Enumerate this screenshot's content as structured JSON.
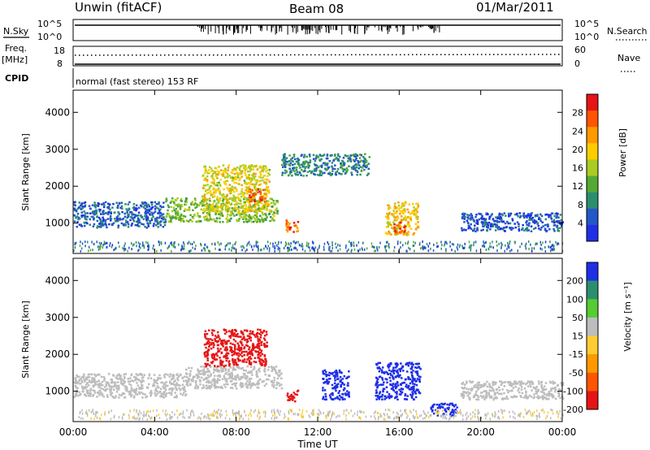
{
  "header": {
    "station": "Unwin (fitACF)",
    "beam": "Beam 08",
    "date": "01/Mar/2011"
  },
  "panels": {
    "nsky_label": "N.Sky",
    "nsearch_label": "N.Search",
    "freq_label": "Freq.",
    "freq_unit": "[MHz]",
    "nave_label": "Nave",
    "cpid_label": "CPID",
    "cpid_text": "normal (fast stereo) 153 RF",
    "noise_ticks_left": [
      "10^5",
      "10^0"
    ],
    "noise_ticks_right": [
      "10^5",
      "10^0"
    ],
    "freq_ticks_left": [
      "18",
      "8"
    ],
    "freq_ticks_right": [
      "60",
      "0"
    ]
  },
  "chart_data": [
    {
      "type": "heatmap",
      "name": "power",
      "xlabel": "",
      "ylabel": "Slant Range [km]",
      "x_ticks": [
        "00:00",
        "04:00",
        "08:00",
        "12:00",
        "16:00",
        "20:00",
        "00:00"
      ],
      "xlim_hours": [
        0,
        24
      ],
      "y_ticks": [
        1000,
        2000,
        3000,
        4000
      ],
      "ylim": [
        180,
        4600
      ],
      "colorbar": {
        "label": "Power [dB]",
        "ticks": [
          4,
          8,
          12,
          16,
          20,
          24,
          28
        ],
        "range": [
          0,
          32
        ],
        "colors": [
          "#1f2fe6",
          "#2457c8",
          "#2b8f6f",
          "#55aa33",
          "#aacc22",
          "#ffcc00",
          "#ff9900",
          "#ff5500",
          "#e61414"
        ]
      },
      "regions": [
        {
          "t": [
            0.0,
            4.5
          ],
          "r": [
            900,
            1600
          ],
          "level": 6
        },
        {
          "t": [
            4.5,
            10.0
          ],
          "r": [
            1050,
            1700
          ],
          "level": 14
        },
        {
          "t": [
            6.3,
            9.6
          ],
          "r": [
            1300,
            2600
          ],
          "level": 18
        },
        {
          "t": [
            8.6,
            9.4
          ],
          "r": [
            1600,
            1950
          ],
          "level": 28
        },
        {
          "t": [
            10.2,
            14.5
          ],
          "r": [
            2300,
            2900
          ],
          "level": 8
        },
        {
          "t": [
            10.4,
            11.0
          ],
          "r": [
            750,
            1100
          ],
          "level": 26
        },
        {
          "t": [
            15.3,
            16.9
          ],
          "r": [
            700,
            1600
          ],
          "level": 20
        },
        {
          "t": [
            15.7,
            16.3
          ],
          "r": [
            750,
            1050
          ],
          "level": 28
        },
        {
          "t": [
            19.0,
            24.0
          ],
          "r": [
            800,
            1300
          ],
          "level": 5
        }
      ]
    },
    {
      "type": "heatmap",
      "name": "velocity",
      "xlabel": "Time UT",
      "ylabel": "Slant Range [km]",
      "x_ticks": [
        "00:00",
        "04:00",
        "08:00",
        "12:00",
        "16:00",
        "20:00",
        "00:00"
      ],
      "xlim_hours": [
        0,
        24
      ],
      "y_ticks": [
        1000,
        2000,
        3000,
        4000
      ],
      "ylim": [
        180,
        4600
      ],
      "colorbar": {
        "label": "Velocity [m s⁻¹]",
        "ticks": [
          200,
          100,
          50,
          15,
          -15,
          -50,
          -100,
          -200
        ],
        "colors": [
          "#1f2fe6",
          "#2b8f6f",
          "#55cc33",
          "#bdbdbd",
          "#ffcc33",
          "#ff9900",
          "#ff5500",
          "#e61414"
        ]
      },
      "regions": [
        {
          "t": [
            0.0,
            5.5
          ],
          "r": [
            850,
            1500
          ],
          "v": 0
        },
        {
          "t": [
            5.5,
            10.2
          ],
          "r": [
            1100,
            1700
          ],
          "v": 0
        },
        {
          "t": [
            6.4,
            9.5
          ],
          "r": [
            1700,
            2700
          ],
          "v": -250
        },
        {
          "t": [
            10.4,
            11.0
          ],
          "r": [
            750,
            1050
          ],
          "v": -250
        },
        {
          "t": [
            12.2,
            13.5
          ],
          "r": [
            800,
            1600
          ],
          "v": 250
        },
        {
          "t": [
            14.8,
            17.0
          ],
          "r": [
            800,
            1800
          ],
          "v": 250
        },
        {
          "t": [
            17.5,
            18.8
          ],
          "r": [
            350,
            700
          ],
          "v": 250
        },
        {
          "t": [
            19.0,
            24.0
          ],
          "r": [
            800,
            1300
          ],
          "v": 0
        }
      ]
    }
  ]
}
